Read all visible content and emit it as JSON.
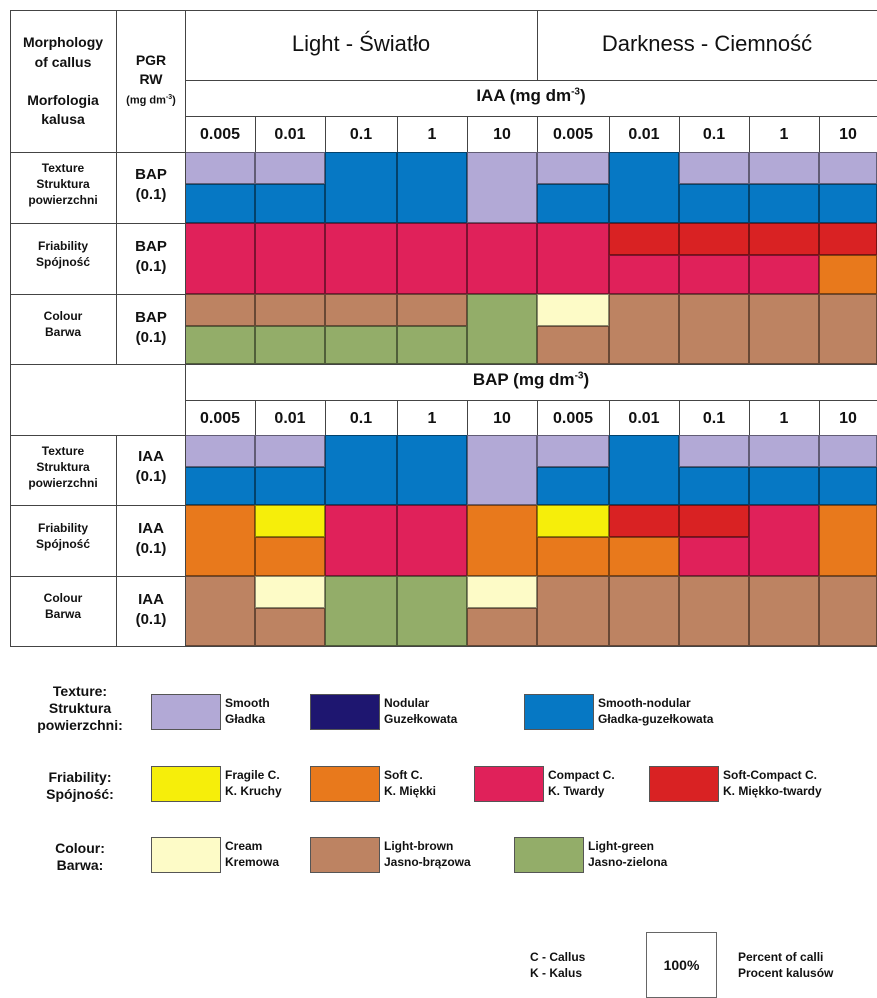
{
  "header": {
    "morph_lines": [
      "Morphology",
      "of callus",
      "Morfologia",
      "kalusa"
    ],
    "pgr_lines": [
      "PGR",
      "RW",
      "(mg dm"
    ],
    "pgr_sup": "-3",
    "pgr_close": ")",
    "light": "Light - Światło",
    "dark": "Darkness - Ciemność"
  },
  "sections": [
    {
      "label": "IAA (mg dm",
      "label_sup": "-3",
      "label_close": ")",
      "conc": [
        "0.005",
        "0.01",
        "0.1",
        "1",
        "10",
        "0.005",
        "0.01",
        "0.1",
        "1",
        "10"
      ],
      "rows": [
        {
          "names": [
            "Texture",
            "Struktura",
            "powierzchni"
          ],
          "pgr": [
            "BAP",
            "(0.1)"
          ],
          "cells": [
            [
              "smooth",
              "smooth-nodular"
            ],
            [
              "smooth",
              "smooth-nodular"
            ],
            [
              "smooth-nodular"
            ],
            [
              "smooth-nodular"
            ],
            [
              "smooth"
            ],
            [
              "smooth",
              "smooth-nodular"
            ],
            [
              "smooth-nodular"
            ],
            [
              "smooth",
              "smooth-nodular"
            ],
            [
              "smooth",
              "smooth-nodular"
            ],
            [
              "smooth",
              "smooth-nodular"
            ]
          ]
        },
        {
          "names": [
            "Friability",
            "Spójność"
          ],
          "pgr": [
            "BAP",
            "(0.1)"
          ],
          "cells": [
            [
              "compact"
            ],
            [
              "compact"
            ],
            [
              "compact"
            ],
            [
              "compact"
            ],
            [
              "compact"
            ],
            [
              "compact"
            ],
            [
              "soft-compact",
              "compact"
            ],
            [
              "soft-compact",
              "compact"
            ],
            [
              "soft-compact",
              "compact"
            ],
            [
              "soft-compact",
              "soft"
            ]
          ]
        },
        {
          "names": [
            "Colour",
            "Barwa"
          ],
          "pgr": [
            "BAP",
            "(0.1)"
          ],
          "cells": [
            [
              "light-brown",
              "light-green"
            ],
            [
              "light-brown",
              "light-green"
            ],
            [
              "light-brown",
              "light-green"
            ],
            [
              "light-brown",
              "light-green"
            ],
            [
              "light-green"
            ],
            [
              "cream",
              "light-brown"
            ],
            [
              "light-brown"
            ],
            [
              "light-brown"
            ],
            [
              "light-brown"
            ],
            [
              "light-brown"
            ]
          ]
        }
      ]
    },
    {
      "label": "BAP (mg dm",
      "label_sup": "-3",
      "label_close": ")",
      "conc": [
        "0.005",
        "0.01",
        "0.1",
        "1",
        "10",
        "0.005",
        "0.01",
        "0.1",
        "1",
        "10"
      ],
      "rows": [
        {
          "names": [
            "Texture",
            "Struktura",
            "powierzchni"
          ],
          "pgr": [
            "IAA",
            "(0.1)"
          ],
          "cells": [
            [
              "smooth",
              "smooth-nodular"
            ],
            [
              "smooth",
              "smooth-nodular"
            ],
            [
              "smooth-nodular"
            ],
            [
              "smooth-nodular"
            ],
            [
              "smooth"
            ],
            [
              "smooth",
              "smooth-nodular"
            ],
            [
              "smooth-nodular"
            ],
            [
              "smooth",
              "smooth-nodular"
            ],
            [
              "smooth",
              "smooth-nodular"
            ],
            [
              "smooth",
              "smooth-nodular"
            ]
          ]
        },
        {
          "names": [
            "Friability",
            "Spójność"
          ],
          "pgr": [
            "IAA",
            "(0.1)"
          ],
          "cells": [
            [
              "soft"
            ],
            [
              "fragile",
              "soft"
            ],
            [
              "compact"
            ],
            [
              "compact"
            ],
            [
              "soft"
            ],
            [
              "fragile",
              "soft"
            ],
            [
              "soft-compact",
              "soft"
            ],
            [
              "soft-compact",
              "compact"
            ],
            [
              "compact"
            ],
            [
              "soft"
            ]
          ]
        },
        {
          "names": [
            "Colour",
            "Barwa"
          ],
          "pgr": [
            "IAA",
            "(0.1)"
          ],
          "cells": [
            [
              "light-brown"
            ],
            [
              "cream",
              "light-brown"
            ],
            [
              "light-green"
            ],
            [
              "light-green"
            ],
            [
              "cream",
              "light-brown"
            ],
            [
              "light-brown"
            ],
            [
              "light-brown"
            ],
            [
              "light-brown"
            ],
            [
              "light-brown"
            ],
            [
              "light-brown"
            ]
          ]
        }
      ]
    }
  ],
  "colors": {
    "smooth": "#b2a9d6",
    "nodular": "#1e1670",
    "smooth-nodular": "#0678c4",
    "fragile": "#f6ee0a",
    "soft": "#e8791c",
    "compact": "#e0215a",
    "soft-compact": "#d92223",
    "cream": "#fdfbc7",
    "light-brown": "#bd8362",
    "light-green": "#93ad69"
  },
  "legend": [
    {
      "title": [
        "Texture:",
        "Struktura",
        "powierzchni:"
      ],
      "items": [
        {
          "key": "smooth",
          "text": [
            "Smooth",
            "Gładka"
          ]
        },
        {
          "key": "nodular",
          "text": [
            "Nodular",
            "Guzełkowata"
          ]
        },
        {
          "key": "smooth-nodular",
          "text": [
            "Smooth-nodular",
            "Gładka-guzełkowata"
          ]
        }
      ]
    },
    {
      "title": [
        "Friability:",
        "Spójność:"
      ],
      "items": [
        {
          "key": "fragile",
          "text": [
            "Fragile C.",
            "K. Kruchy"
          ]
        },
        {
          "key": "soft",
          "text": [
            "Soft C.",
            "K. Miękki"
          ]
        },
        {
          "key": "compact",
          "text": [
            "Compact C.",
            "K. Twardy"
          ]
        },
        {
          "key": "soft-compact",
          "text": [
            "Soft-Compact C.",
            "K. Miękko-twardy"
          ]
        }
      ]
    },
    {
      "title": [
        "Colour:",
        "Barwa:"
      ],
      "items": [
        {
          "key": "cream",
          "text": [
            "Cream",
            "Kremowa"
          ]
        },
        {
          "key": "light-brown",
          "text": [
            "Light-brown",
            "Jasno-brązowa"
          ]
        },
        {
          "key": "light-green",
          "text": [
            "Light-green",
            "Jasno-zielona"
          ]
        }
      ]
    }
  ],
  "footer": {
    "abbr": [
      "C -  Callus",
      "K -  Kalus"
    ],
    "box": "100%",
    "percent": [
      "Percent of calli",
      "Procent kalusów"
    ]
  }
}
